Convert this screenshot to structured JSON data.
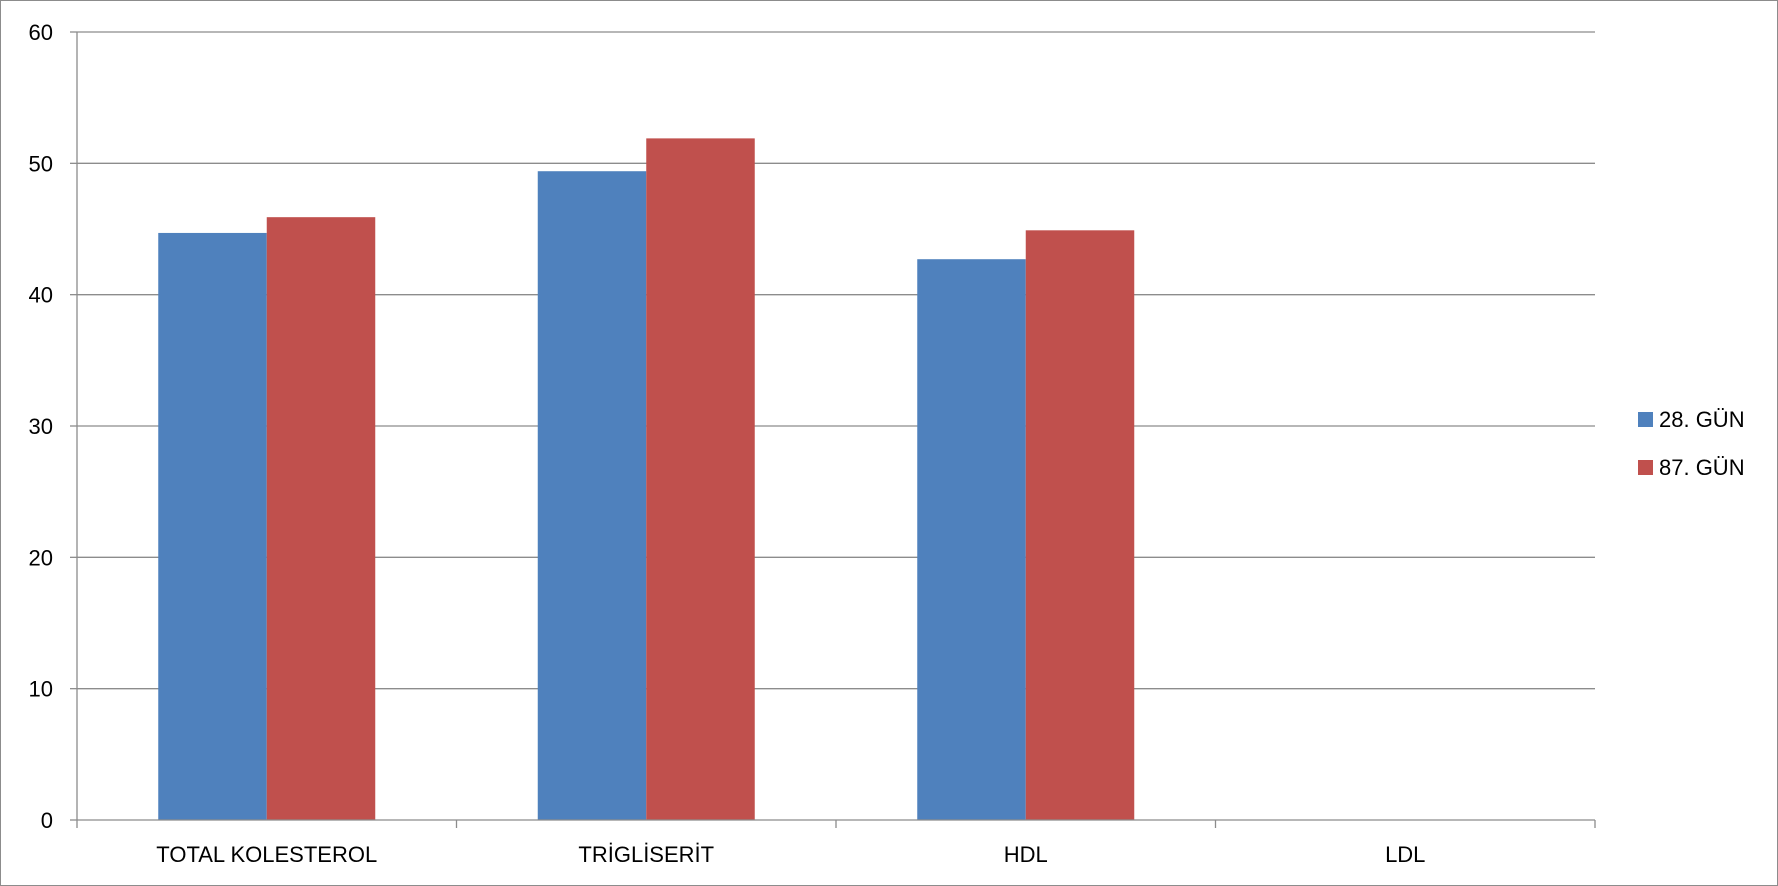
{
  "chart_data": {
    "type": "bar",
    "categories": [
      "TOTAL KOLESTEROL",
      "TRİGLİSERİT",
      "HDL",
      "LDL"
    ],
    "series": [
      {
        "name": "28. GÜN",
        "color": "#4F81BD",
        "values": [
          44.7,
          49.4,
          42.7,
          0
        ]
      },
      {
        "name": "87. GÜN",
        "color": "#C0504D",
        "values": [
          45.9,
          51.9,
          44.9,
          0
        ]
      }
    ],
    "ylim": [
      0,
      60
    ],
    "yticks": [
      "0",
      "10",
      "20",
      "30",
      "40",
      "50",
      "60"
    ],
    "grid": true,
    "legend_position": "right",
    "title": "",
    "xlabel": "",
    "ylabel": ""
  }
}
